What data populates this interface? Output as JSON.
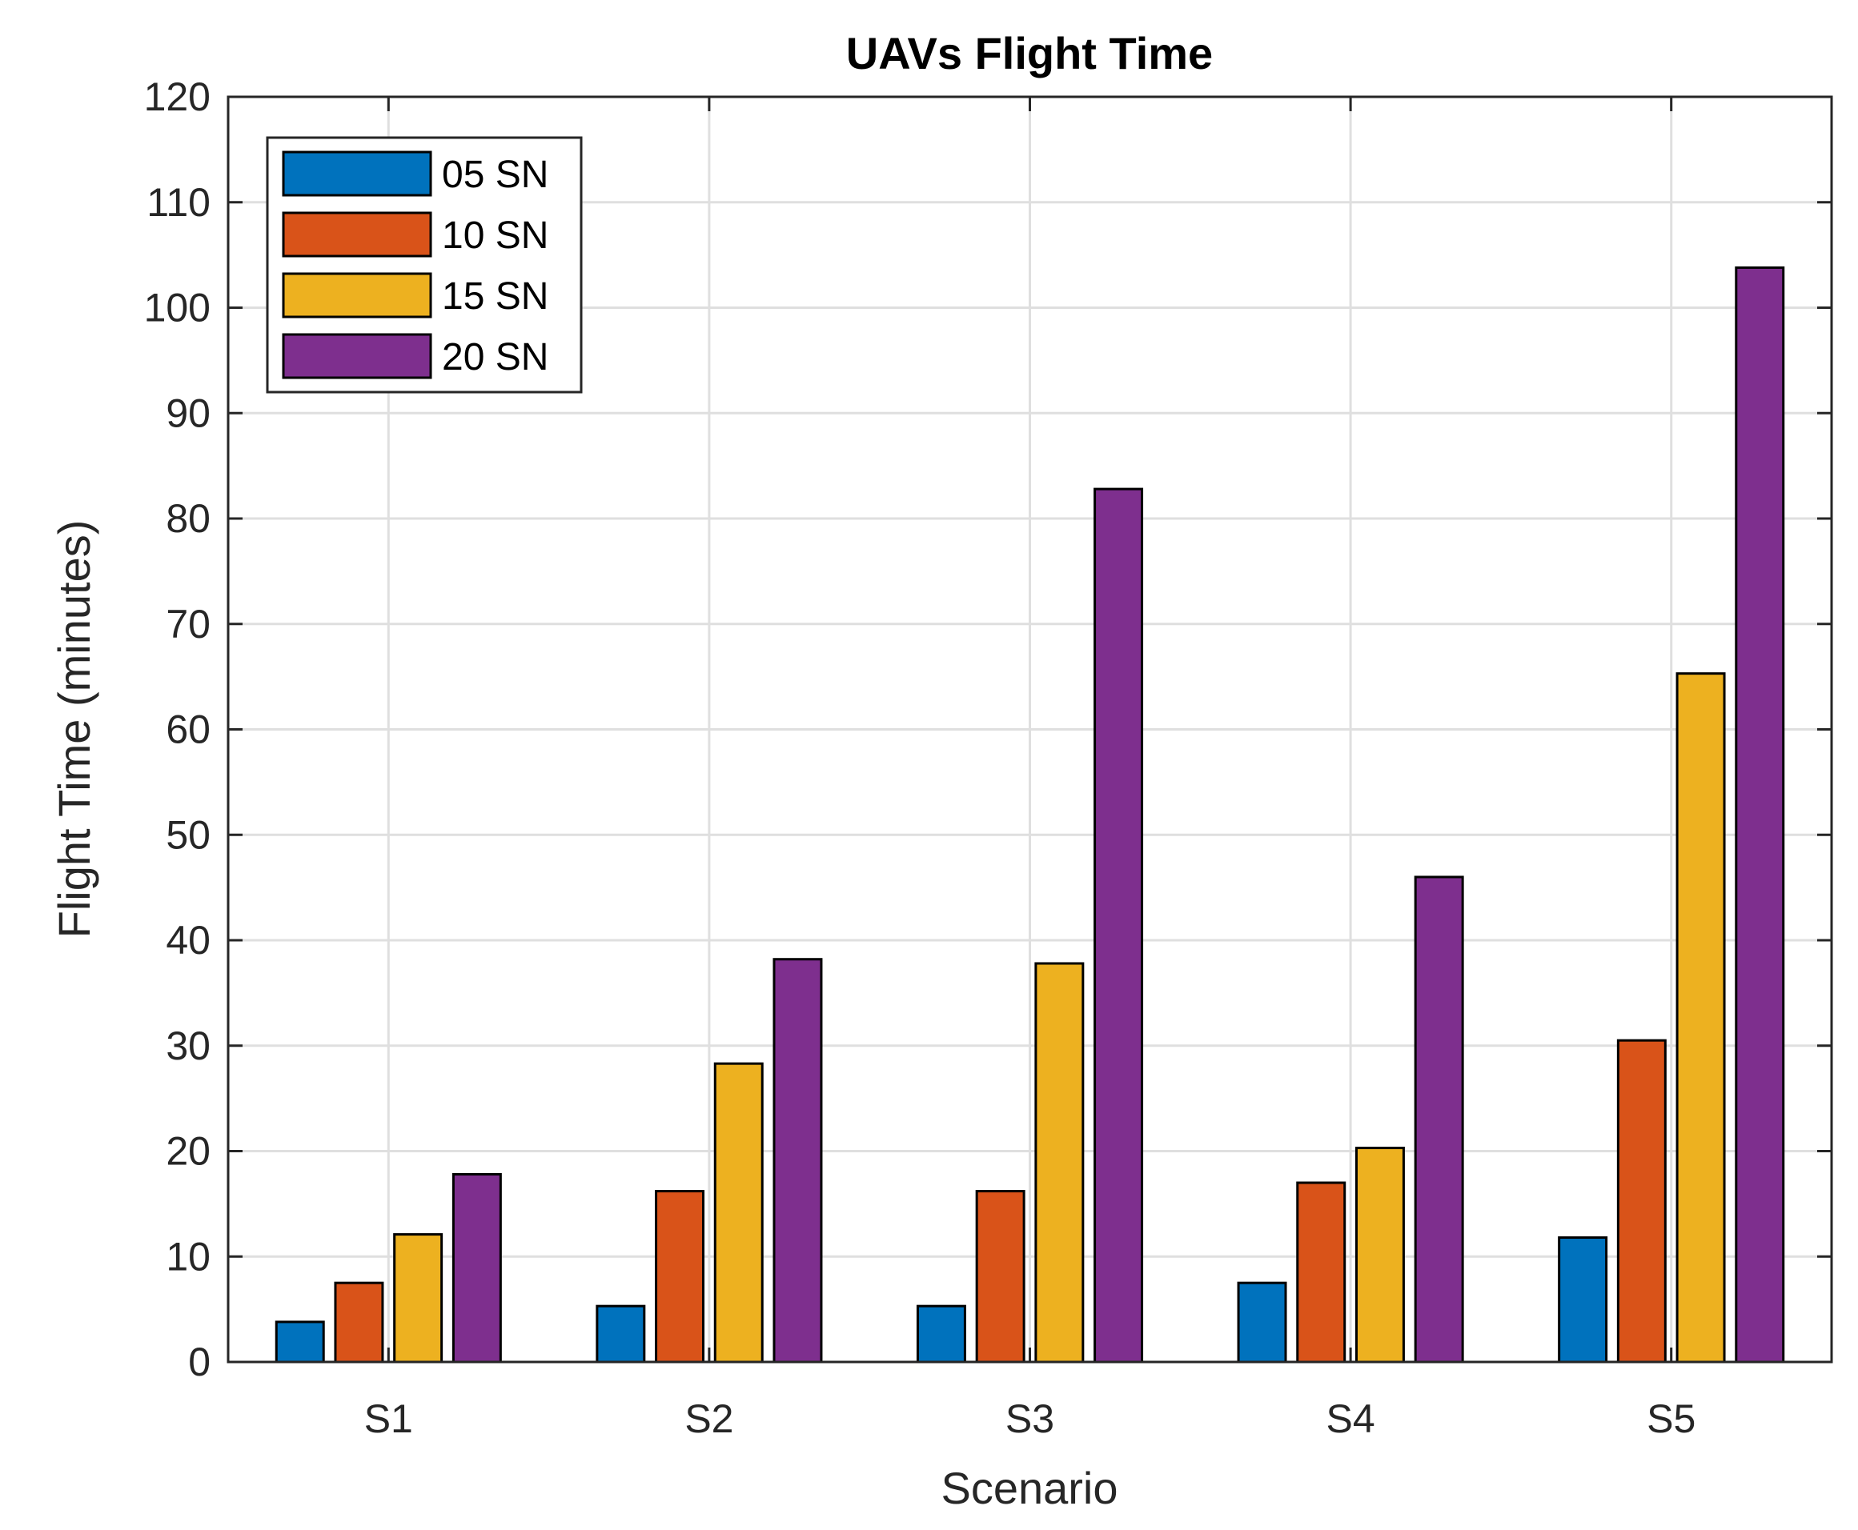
{
  "chart_data": {
    "type": "bar",
    "title": "UAVs Flight Time",
    "xlabel": "Scenario",
    "ylabel": "Flight Time (minutes)",
    "categories": [
      "S1",
      "S2",
      "S3",
      "S4",
      "S5"
    ],
    "ylim": [
      0,
      120
    ],
    "yticks": [
      0,
      10,
      20,
      30,
      40,
      50,
      60,
      70,
      80,
      90,
      100,
      110,
      120
    ],
    "grid": true,
    "legend_position": "top-left",
    "series": [
      {
        "name": "05 SN",
        "color": "#0072bd",
        "values": [
          3.8,
          5.3,
          5.3,
          7.5,
          11.8
        ]
      },
      {
        "name": "10 SN",
        "color": "#d95319",
        "values": [
          7.5,
          16.2,
          16.2,
          17.0,
          30.5
        ]
      },
      {
        "name": "15 SN",
        "color": "#edb120",
        "values": [
          12.1,
          28.3,
          37.8,
          20.3,
          65.3
        ]
      },
      {
        "name": "20 SN",
        "color": "#7e2f8e",
        "values": [
          17.8,
          38.2,
          82.8,
          46.0,
          103.8
        ]
      }
    ]
  }
}
